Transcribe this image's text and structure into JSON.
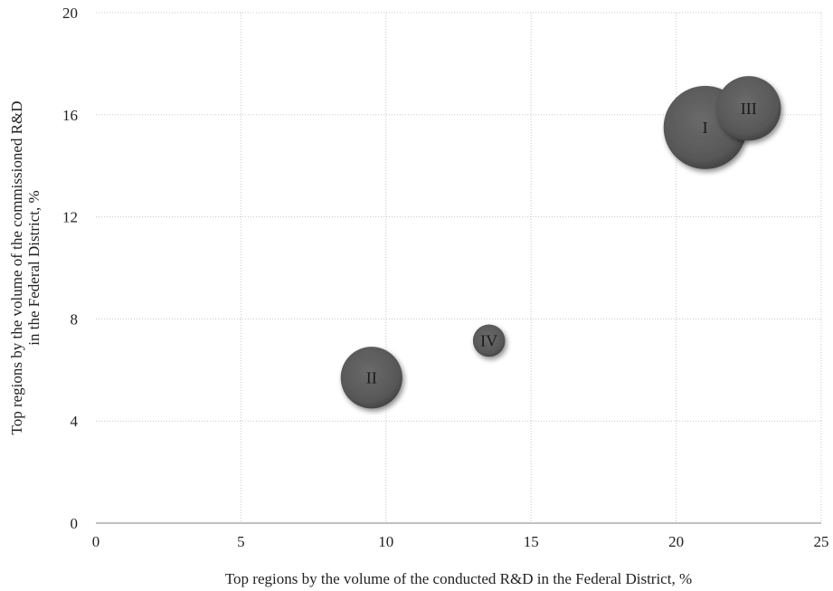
{
  "chart_data": {
    "type": "scatter",
    "subtype": "bubble",
    "xlabel": "Top regions by the volume of the conducted R&D in the Federal District, %",
    "ylabel": "Top regions by the volume of the commissioned R&D\nin the Federal District, %",
    "xlim": [
      0,
      25
    ],
    "ylim": [
      0,
      20
    ],
    "x_ticks": [
      "0",
      "5",
      "10",
      "15",
      "20",
      "25"
    ],
    "y_ticks": [
      "0",
      "4",
      "8",
      "12",
      "16",
      "20"
    ],
    "grid": true,
    "bubble_color": "#5a5a5a",
    "points": [
      {
        "label": "I",
        "x": 21.0,
        "y": 15.5,
        "size": 1.0
      },
      {
        "label": "III",
        "x": 22.5,
        "y": 16.25,
        "size": 0.6
      },
      {
        "label": "II",
        "x": 9.5,
        "y": 5.7,
        "size": 0.55
      },
      {
        "label": "IV",
        "x": 13.55,
        "y": 7.15,
        "size": 0.15
      }
    ]
  }
}
